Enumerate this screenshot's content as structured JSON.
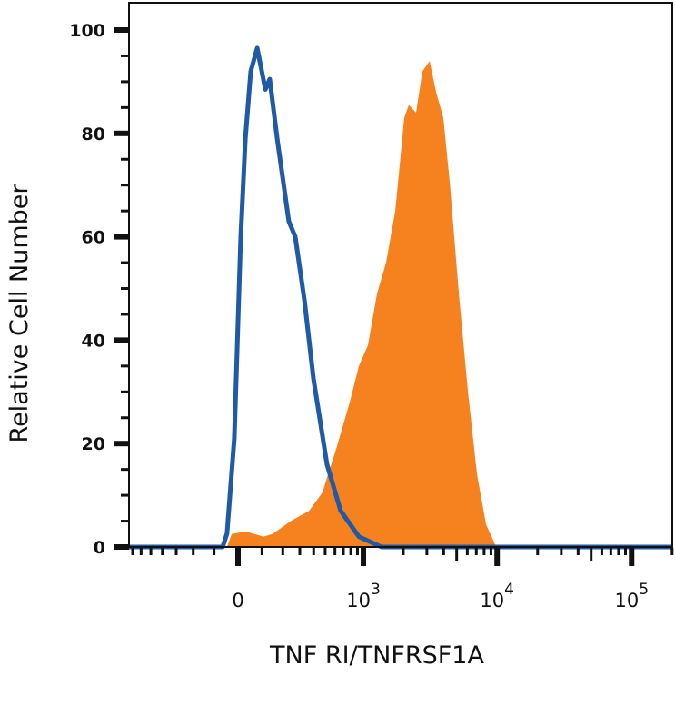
{
  "chart_data": {
    "type": "area",
    "title": "",
    "xlabel": "TNF RI/TNFRSF1A",
    "ylabel": "Relative Cell Number",
    "x_scale": "biexponential",
    "xlim": [
      -750,
      200000
    ],
    "ylim": [
      0,
      100
    ],
    "grid": false,
    "legend": "none",
    "y_ticks": [
      0,
      20,
      40,
      60,
      80,
      100
    ],
    "y_tick_labels": [
      "0",
      "20",
      "40",
      "60",
      "80",
      "100"
    ],
    "x_ticks": [
      {
        "value": 0,
        "base": "0",
        "exp": ""
      },
      {
        "value": 1000,
        "base": "10",
        "exp": "3"
      },
      {
        "value": 10000,
        "base": "10",
        "exp": "4"
      },
      {
        "value": 100000,
        "base": "10",
        "exp": "5"
      }
    ],
    "series": [
      {
        "style": "filled",
        "color": "#f5821f",
        "x": [
          -750,
          -45,
          -26,
          30,
          106,
          148,
          244,
          365,
          474,
          614,
          785,
          922,
          1083,
          1268,
          1486,
          1740,
          2034,
          2199,
          2493,
          2782,
          3150,
          3515,
          3982,
          4441,
          5190,
          6067,
          7086,
          8271,
          9670,
          11281,
          200000
        ],
        "y": [
          0,
          0,
          2.5,
          3,
          2,
          2.5,
          5,
          7,
          10.5,
          19,
          28,
          35,
          39,
          49,
          55,
          65,
          83,
          85.5,
          84,
          92,
          94,
          88,
          83,
          70.5,
          49,
          30,
          14,
          4.4,
          0.5,
          0,
          0
        ]
      },
      {
        "style": "line",
        "color": "#1f5aa6",
        "x": [
          -750,
          -63,
          -45,
          -15,
          11,
          30,
          52,
          79,
          115,
          135,
          171,
          233,
          271,
          332,
          398,
          517,
          667,
          922,
          1372,
          200000
        ],
        "y": [
          0,
          0,
          2.6,
          21,
          60,
          79,
          92,
          96.5,
          88.5,
          90.5,
          79,
          63,
          60,
          47.6,
          32.6,
          16,
          7,
          2,
          0,
          0
        ]
      }
    ]
  }
}
